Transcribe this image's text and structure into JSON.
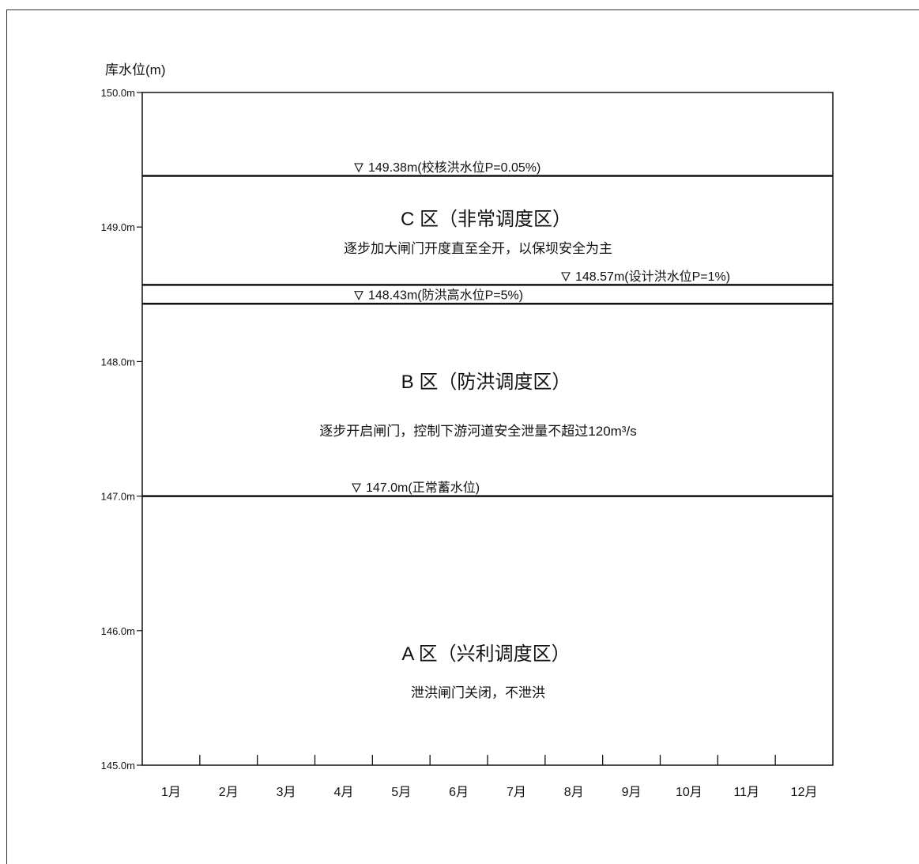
{
  "chart_data": {
    "type": "line",
    "title": "",
    "xlabel": "",
    "ylabel": "库水位(m)",
    "ylim": [
      145.0,
      150.0
    ],
    "grid": false,
    "legend": "none",
    "y_ticks": [
      {
        "value": 150.0,
        "label": "150.0m"
      },
      {
        "value": 149.0,
        "label": "149.0m"
      },
      {
        "value": 148.0,
        "label": "148.0m"
      },
      {
        "value": 147.0,
        "label": "147.0m"
      },
      {
        "value": 146.0,
        "label": "146.0m"
      },
      {
        "value": 145.0,
        "label": "145.0m"
      }
    ],
    "categories": [
      "1月",
      "2月",
      "3月",
      "4月",
      "5月",
      "6月",
      "7月",
      "8月",
      "9月",
      "10月",
      "11月",
      "12月"
    ],
    "levels": [
      {
        "value": 149.38,
        "label": "149.38m(校核洪水位P=0.05%)"
      },
      {
        "value": 148.57,
        "label": "148.57m(设计洪水位P=1%)"
      },
      {
        "value": 148.43,
        "label": "148.43m(防洪高水位P=5%)"
      },
      {
        "value": 147.0,
        "label": "147.0m(正常蓄水位)"
      }
    ],
    "zones": [
      {
        "title": "C 区（非常调度区）",
        "description": "逐步加大闸门开度直至全开，以保坝安全为主"
      },
      {
        "title": "B 区（防洪调度区）",
        "description": "逐步开启闸门，控制下游河道安全泄量不超过120m³/s"
      },
      {
        "title": "A 区（兴利调度区）",
        "description": "泄洪闸门关闭，不泄洪"
      }
    ]
  },
  "colors": {
    "line": "#111111",
    "background": "#ffffff"
  }
}
